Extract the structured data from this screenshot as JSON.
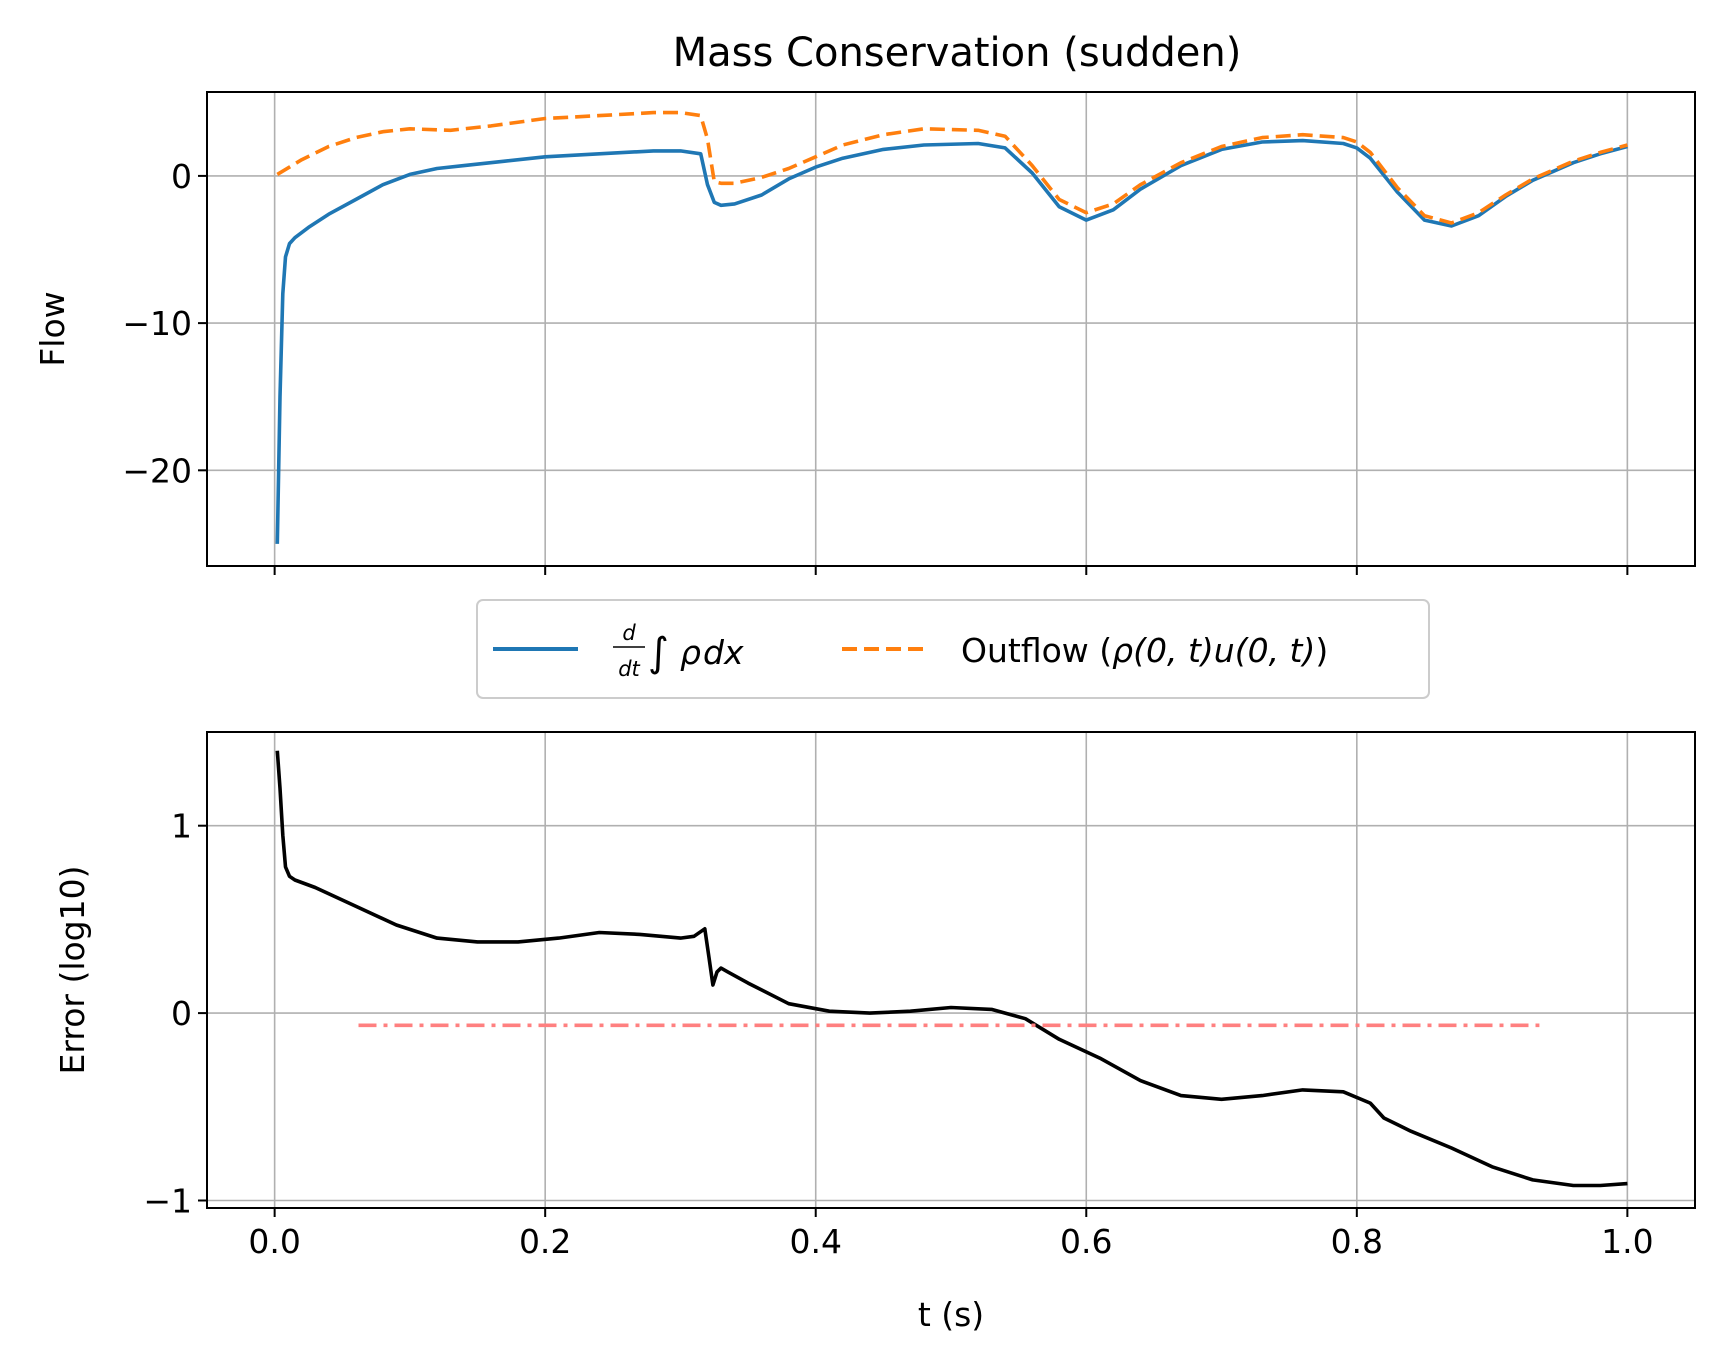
{
  "title": "Mass Conservation (sudden)",
  "colors": {
    "series1": "#1f77b4",
    "series2": "#ff7f0e",
    "error": "#000000",
    "reference": "#ff8080",
    "grid": "#b0b0b0",
    "legend_border": "#cccccc"
  },
  "legend": {
    "entry1": {
      "d": "d",
      "dt": "dt",
      "integral": "∫",
      "rho": "ρ",
      "dx": "dx"
    },
    "entry2": {
      "prefix": "Outflow (",
      "expr": "ρ(0, t)u(0, t)",
      "suffix": ")"
    },
    "placement": "between panels, centered"
  },
  "chart_data": [
    {
      "type": "line",
      "panel": "top",
      "ylabel": "Flow",
      "xlabel": "",
      "xlim": [
        -0.05,
        1.05
      ],
      "ylim": [
        -26.5,
        5.7
      ],
      "xticks": [
        0.0,
        0.2,
        0.4,
        0.6,
        0.8,
        1.0
      ],
      "xtick_labels_visible": false,
      "yticks": [
        0,
        -10,
        -20
      ],
      "ytick_labels": [
        "0",
        "−10",
        "−20"
      ],
      "grid": true,
      "series": [
        {
          "name": "d/dt ∫ρdx",
          "style": "solid",
          "color": "#1f77b4",
          "x": [
            0.002,
            0.004,
            0.006,
            0.008,
            0.011,
            0.015,
            0.025,
            0.04,
            0.06,
            0.08,
            0.1,
            0.12,
            0.14,
            0.17,
            0.2,
            0.24,
            0.28,
            0.3,
            0.315,
            0.32,
            0.325,
            0.33,
            0.34,
            0.36,
            0.38,
            0.4,
            0.42,
            0.45,
            0.48,
            0.52,
            0.54,
            0.56,
            0.58,
            0.6,
            0.62,
            0.64,
            0.67,
            0.7,
            0.73,
            0.76,
            0.79,
            0.8,
            0.81,
            0.83,
            0.85,
            0.87,
            0.89,
            0.91,
            0.93,
            0.96,
            0.98,
            1.0
          ],
          "y": [
            -25.0,
            -15.0,
            -8.0,
            -5.5,
            -4.6,
            -4.2,
            -3.5,
            -2.6,
            -1.6,
            -0.6,
            0.1,
            0.5,
            0.7,
            1.0,
            1.3,
            1.5,
            1.7,
            1.7,
            1.5,
            -0.6,
            -1.8,
            -2.0,
            -1.9,
            -1.3,
            -0.2,
            0.6,
            1.2,
            1.8,
            2.1,
            2.2,
            1.9,
            0.2,
            -2.1,
            -3.0,
            -2.3,
            -0.9,
            0.7,
            1.8,
            2.3,
            2.4,
            2.2,
            1.9,
            1.2,
            -1.1,
            -3.0,
            -3.4,
            -2.7,
            -1.4,
            -0.3,
            0.9,
            1.5,
            2.0
          ]
        },
        {
          "name": "Outflow (ρ(0, t)u(0, t))",
          "style": "dashed",
          "color": "#ff7f0e",
          "x": [
            0.002,
            0.02,
            0.04,
            0.06,
            0.08,
            0.1,
            0.13,
            0.16,
            0.2,
            0.24,
            0.28,
            0.3,
            0.315,
            0.32,
            0.325,
            0.33,
            0.34,
            0.36,
            0.38,
            0.4,
            0.42,
            0.45,
            0.48,
            0.52,
            0.54,
            0.56,
            0.58,
            0.6,
            0.62,
            0.64,
            0.67,
            0.7,
            0.73,
            0.76,
            0.79,
            0.8,
            0.81,
            0.83,
            0.85,
            0.87,
            0.89,
            0.91,
            0.93,
            0.96,
            0.98,
            1.0
          ],
          "y": [
            0.1,
            1.1,
            2.0,
            2.6,
            3.0,
            3.2,
            3.1,
            3.4,
            3.9,
            4.1,
            4.3,
            4.3,
            4.1,
            2.5,
            -0.4,
            -0.5,
            -0.5,
            -0.1,
            0.5,
            1.3,
            2.1,
            2.8,
            3.2,
            3.1,
            2.7,
            0.7,
            -1.6,
            -2.5,
            -1.9,
            -0.6,
            0.9,
            2.0,
            2.6,
            2.8,
            2.6,
            2.3,
            1.6,
            -0.8,
            -2.7,
            -3.2,
            -2.5,
            -1.3,
            -0.2,
            1.0,
            1.6,
            2.1
          ]
        }
      ]
    },
    {
      "type": "line",
      "panel": "bottom",
      "ylabel": "Error (log10)",
      "xlabel": "t (s)",
      "xlim": [
        -0.05,
        1.05
      ],
      "ylim": [
        -1.04,
        1.5
      ],
      "xticks": [
        0.0,
        0.2,
        0.4,
        0.6,
        0.8,
        1.0
      ],
      "xtick_labels": [
        "0.0",
        "0.2",
        "0.4",
        "0.6",
        "0.8",
        "1.0"
      ],
      "yticks": [
        1,
        0,
        -1
      ],
      "ytick_labels": [
        "1",
        "0",
        "−1"
      ],
      "grid": true,
      "series": [
        {
          "name": "error",
          "style": "solid",
          "color": "#000000",
          "x": [
            0.002,
            0.004,
            0.006,
            0.008,
            0.011,
            0.015,
            0.03,
            0.06,
            0.09,
            0.12,
            0.15,
            0.18,
            0.21,
            0.24,
            0.27,
            0.3,
            0.31,
            0.318,
            0.321,
            0.324,
            0.327,
            0.33,
            0.335,
            0.35,
            0.38,
            0.41,
            0.44,
            0.47,
            0.5,
            0.53,
            0.555,
            0.58,
            0.61,
            0.64,
            0.67,
            0.7,
            0.73,
            0.76,
            0.79,
            0.81,
            0.82,
            0.84,
            0.87,
            0.9,
            0.93,
            0.96,
            0.98,
            1.0
          ],
          "y": [
            1.4,
            1.2,
            0.95,
            0.78,
            0.73,
            0.71,
            0.67,
            0.57,
            0.47,
            0.4,
            0.38,
            0.38,
            0.4,
            0.43,
            0.42,
            0.4,
            0.41,
            0.45,
            0.3,
            0.15,
            0.22,
            0.24,
            0.22,
            0.16,
            0.05,
            0.01,
            0.0,
            0.01,
            0.03,
            0.02,
            -0.03,
            -0.14,
            -0.24,
            -0.36,
            -0.44,
            -0.46,
            -0.44,
            -0.41,
            -0.42,
            -0.48,
            -0.56,
            -0.63,
            -0.72,
            -0.82,
            -0.89,
            -0.92,
            -0.92,
            -0.91
          ]
        },
        {
          "name": "reference",
          "style": "dashdot",
          "color": "#ff8080",
          "x": [
            0.062,
            0.935
          ],
          "y": [
            -0.065,
            -0.065
          ]
        }
      ]
    }
  ]
}
